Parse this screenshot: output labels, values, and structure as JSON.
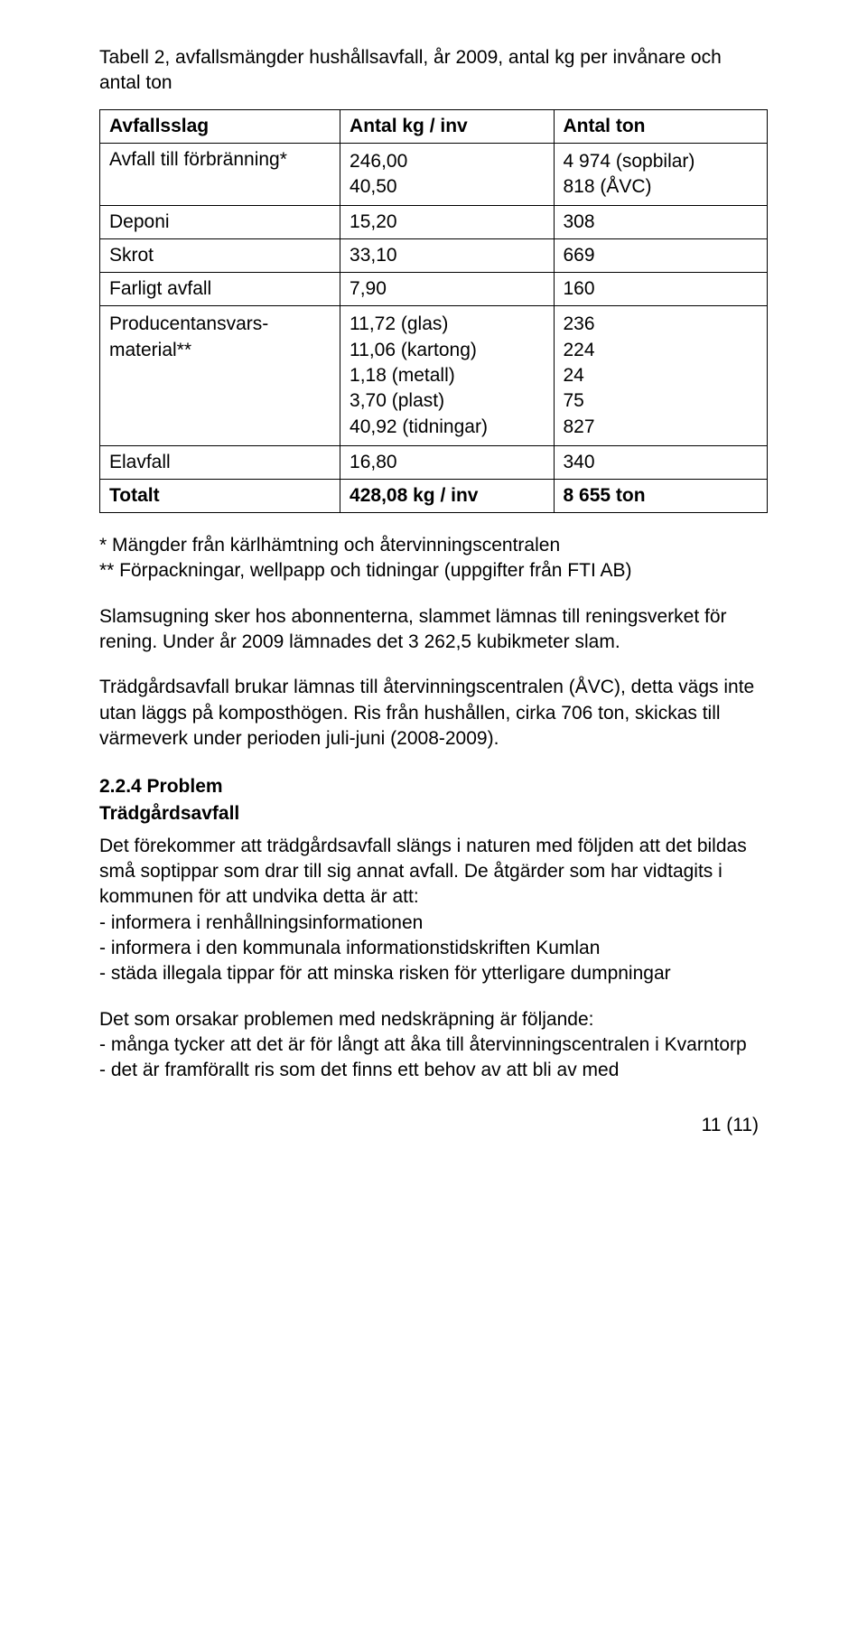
{
  "table": {
    "title": "Tabell 2, avfallsmängder hushållsavfall, år 2009, antal kg per invånare och antal ton",
    "headers": {
      "c1": "Avfallsslag",
      "c2": "Antal kg / inv",
      "c3": "Antal ton"
    },
    "rows": {
      "r1": {
        "c1": "Avfall till förbränning*",
        "c2a": "246,00",
        "c2b": "40,50",
        "c3a": "4 974 (sopbilar)",
        "c3b": "818 (ÅVC)"
      },
      "r2": {
        "c1": "Deponi",
        "c2": "15,20",
        "c3": "308"
      },
      "r3": {
        "c1": "Skrot",
        "c2": "33,10",
        "c3": "669"
      },
      "r4": {
        "c1": "Farligt avfall",
        "c2": "7,90",
        "c3": "160"
      },
      "r5": {
        "c1a": "Producentansvars-",
        "c1b": "material**",
        "c2a": "11,72 (glas)",
        "c2b": "11,06 (kartong)",
        "c2c": "1,18 (metall)",
        "c2d": "3,70 (plast)",
        "c2e": "40,92 (tidningar)",
        "c3a": "236",
        "c3b": "224",
        "c3c": "24",
        "c3d": "75",
        "c3e": "827"
      },
      "r6": {
        "c1": "Elavfall",
        "c2": "16,80",
        "c3": "340"
      },
      "r7": {
        "c1": "Totalt",
        "c2": "428,08 kg / inv",
        "c3": "8 655 ton"
      }
    }
  },
  "footnote": {
    "l1": "* Mängder från kärlhämtning och återvinningscentralen",
    "l2": "** Förpackningar, wellpapp och tidningar (uppgifter från FTI AB)"
  },
  "para1": "Slamsugning sker hos abonnenterna, slammet lämnas till reningsverket för rening. Under år 2009 lämnades det 3 262,5 kubikmeter slam.",
  "para2": "Trädgårdsavfall brukar lämnas till återvinningscentralen (ÅVC), detta vägs inte utan läggs på komposthögen. Ris från hushållen, cirka 706 ton, skickas till värmeverk under perioden juli-juni (2008-2009).",
  "section": {
    "heading": "2.2.4 Problem",
    "sub": "Trädgårdsavfall",
    "p1": "Det förekommer att trädgårdsavfall slängs i naturen med följden att det bildas små soptippar som drar till sig annat avfall. De åtgärder som har vidtagits i kommunen för att undvika detta är att:",
    "b1": "- informera i renhållningsinformationen",
    "b2": "- informera i den kommunala informationstidskriften Kumlan",
    "b3": "- städa illegala tippar för att minska risken för ytterligare dumpningar",
    "p2": "Det som orsakar problemen med nedskräpning är följande:",
    "b4": "- många tycker att det är för långt att åka till återvinningscentralen i Kvarntorp",
    "b5": "- det är framförallt ris som det finns ett behov av att bli av med"
  },
  "pagenum": "11 (11)"
}
